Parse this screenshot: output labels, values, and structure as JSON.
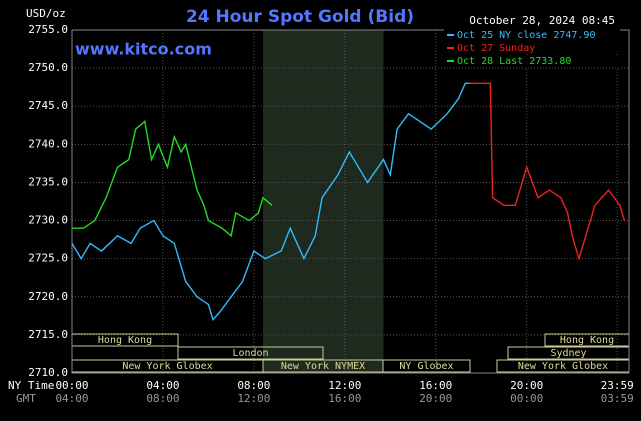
{
  "chart_data": {
    "type": "line",
    "title": "24 Hour Spot Gold (Bid)",
    "subtitle": "www.kitco.com",
    "date": "October 28, 2024 08:45",
    "y_label": "USD/oz",
    "x_label": "NY Time",
    "x2_label": "GMT",
    "xlim": [
      0,
      24.5
    ],
    "ylim": [
      2710,
      2755
    ],
    "yticks": [
      {
        "value": 2755,
        "label": "2755.0"
      },
      {
        "value": 2750,
        "label": "2750.0"
      },
      {
        "value": 2745,
        "label": "2745.0"
      },
      {
        "value": 2740,
        "label": "2740.0"
      },
      {
        "value": 2735,
        "label": "2735.0"
      },
      {
        "value": 2730,
        "label": "2730.0"
      },
      {
        "value": 2725,
        "label": "2725.0"
      },
      {
        "value": 2720,
        "label": "2720.0"
      },
      {
        "value": 2715,
        "label": "2715.0"
      },
      {
        "value": 2710,
        "label": "2710.0"
      }
    ],
    "xticks": [
      {
        "value": 0,
        "label": "00:00"
      },
      {
        "value": 4,
        "label": "04:00"
      },
      {
        "value": 8,
        "label": "08:00"
      },
      {
        "value": 12,
        "label": "12:00"
      },
      {
        "value": 16,
        "label": "16:00"
      },
      {
        "value": 20,
        "label": "20:00"
      },
      {
        "value": 23.98,
        "label": "23:59"
      }
    ],
    "x2ticks": [
      "04:00",
      "08:00",
      "12:00",
      "16:00",
      "20:00",
      "00:00",
      "03:59"
    ],
    "grid": true,
    "shaded": [
      8.4,
      13.7
    ],
    "sessions": [
      "Hong Kong",
      "London",
      "New York Globex",
      "New York NYMEX",
      "NY Globex",
      "Hong Kong",
      "Sydney",
      "New York Globex"
    ],
    "series": [
      {
        "name": "Oct 25 NY close 2747.90",
        "color": "#33bbff",
        "x": [
          0,
          0.4,
          0.8,
          1.3,
          2,
          2.6,
          3,
          3.6,
          4,
          4.5,
          5,
          5.5,
          6,
          6.2,
          6.5,
          7,
          7.5,
          8,
          8.5,
          9.2,
          9.6,
          10.2,
          10.7,
          11,
          11.7,
          12.2,
          12.6,
          13,
          13.7,
          14,
          14.3,
          14.8,
          15.3,
          15.8,
          16.5,
          17,
          17.3,
          17.5
        ],
        "values": [
          2727,
          2725,
          2727,
          2726,
          2728,
          2727,
          2729,
          2730,
          2728,
          2727,
          2722,
          2720,
          2719,
          2717,
          2718,
          2720,
          2722,
          2726,
          2725,
          2726,
          2729,
          2725,
          2728,
          2733,
          2736,
          2739,
          2737,
          2735,
          2738,
          2736,
          2742,
          2744,
          2743,
          2742,
          2744,
          2746,
          2748,
          2748
        ]
      },
      {
        "name": "Oct 27 Sunday",
        "color": "#ee2222",
        "x": [
          17.5,
          18.4,
          18.5,
          19,
          19.5,
          20,
          20.5,
          21,
          21.5,
          21.8,
          22,
          22.3,
          22.6,
          23,
          23.3,
          23.6,
          24.1,
          24.3
        ],
        "values": [
          2748,
          2748,
          2733,
          2732,
          2732,
          2737,
          2733,
          2734,
          2733,
          2731,
          2728,
          2725,
          2728,
          2732,
          2733,
          2734,
          2732,
          2730
        ]
      },
      {
        "name": "Oct 28 Last 2733.80",
        "color": "#22dd22",
        "x": [
          0,
          0.5,
          1,
          1.5,
          2,
          2.5,
          2.8,
          3.2,
          3.5,
          3.8,
          4.2,
          4.5,
          4.8,
          5,
          5.5,
          5.8,
          6,
          6.6,
          7,
          7.2,
          7.8,
          8.2,
          8.4,
          8.8
        ],
        "values": [
          2729,
          2729,
          2730,
          2733,
          2737,
          2738,
          2742,
          2743,
          2738,
          2740,
          2737,
          2741,
          2739,
          2740,
          2734,
          2732,
          2730,
          2729,
          2728,
          2731,
          2730,
          2731,
          2733,
          2732
        ]
      }
    ]
  }
}
